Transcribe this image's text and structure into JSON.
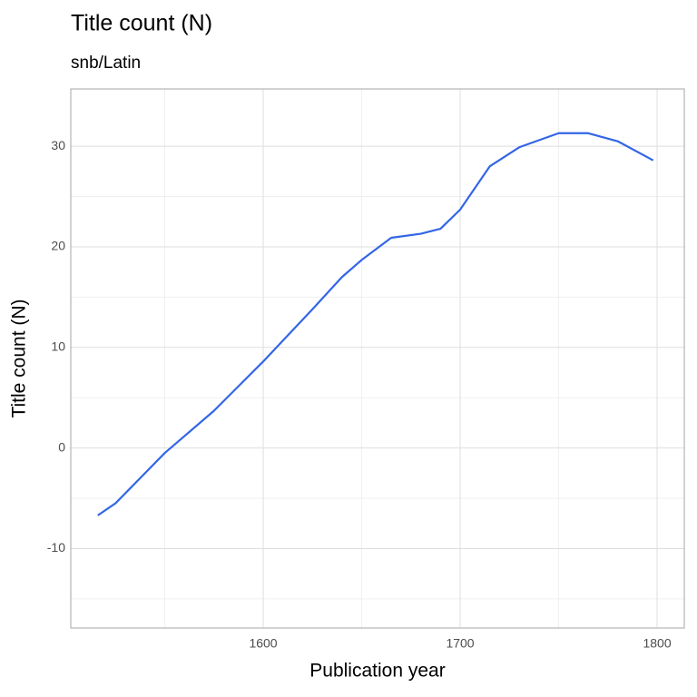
{
  "chart_data": {
    "type": "line",
    "title": "Title count (N)",
    "subtitle": "snb/Latin",
    "x_label": "Publication year",
    "y_label": "Title count (N)",
    "x": [
      1516,
      1525,
      1550,
      1575,
      1600,
      1625,
      1640,
      1650,
      1665,
      1680,
      1690,
      1700,
      1715,
      1730,
      1750,
      1765,
      1780,
      1798
    ],
    "series": [
      {
        "name": "Title count (N)",
        "color": "#3366e6",
        "values": [
          -6.7,
          -5.5,
          -0.5,
          3.7,
          8.6,
          13.8,
          17,
          18.7,
          20.9,
          21.3,
          21.8,
          23.7,
          28,
          29.9,
          31.3,
          31.3,
          30.5,
          28.6
        ]
      }
    ],
    "xlim": [
      1502.3,
      1813.8
    ],
    "ylim": [
      -17.9,
      35.7
    ],
    "xticks": [
      1600,
      1700,
      1800
    ],
    "yticks": [
      -10,
      0,
      10,
      20,
      30
    ],
    "x_minor_ticks": [
      1550,
      1650,
      1750
    ],
    "y_minor_ticks": [
      -15,
      -5,
      5,
      15,
      25
    ],
    "grid": true
  }
}
